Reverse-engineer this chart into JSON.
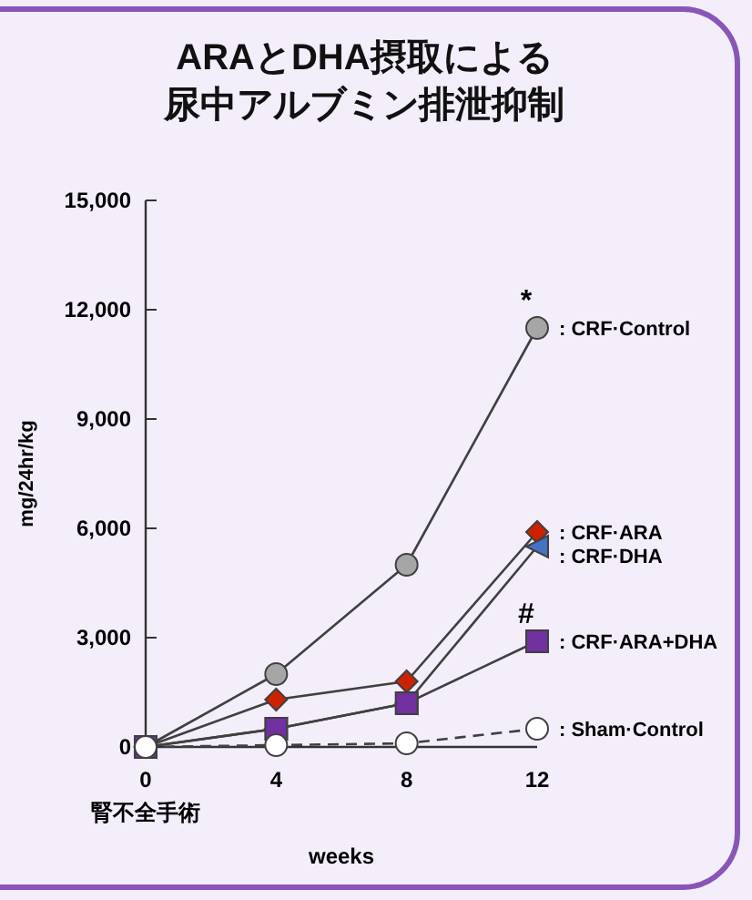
{
  "chart_data": {
    "type": "line",
    "title": "ARAとDHA摂取による尿中アルブミン排泄抑制",
    "xlabel": "weeks",
    "ylabel": "mg/24hr/kg",
    "x": [
      0,
      4,
      8,
      12
    ],
    "xlim": [
      0,
      12
    ],
    "xticks": [
      0,
      4,
      8,
      12
    ],
    "ylim": [
      0,
      15000
    ],
    "yticks": [
      0,
      {
        "value": 3000,
        "label": "3,000"
      },
      {
        "value": 6000,
        "label": "6,000"
      },
      {
        "value": 9000,
        "label": "9,000"
      },
      {
        "value": 12000,
        "label": "12,000"
      },
      {
        "value": 15000,
        "label": "15,000"
      }
    ],
    "grid": false,
    "series": [
      {
        "name": ": CRF·Control",
        "color": "#a6a6a6",
        "marker": "circle",
        "line_style": "solid",
        "values": [
          0,
          2000,
          5000,
          11500
        ]
      },
      {
        "name": ": CRF·ARA",
        "color": "#cc2200",
        "marker": "diamond",
        "line_style": "solid",
        "values": [
          0,
          1300,
          1800,
          5900
        ]
      },
      {
        "name": ": CRF·DHA",
        "color": "#4472c4",
        "marker": "triangle",
        "line_style": "solid",
        "values": [
          0,
          500,
          1200,
          5500
        ]
      },
      {
        "name": ": CRF·ARA+DHA",
        "color": "#7030a0",
        "marker": "square",
        "line_style": "solid",
        "values": [
          0,
          500,
          1200,
          2900
        ]
      },
      {
        "name": ": Sham·Control",
        "color": "#ffffff",
        "marker": "circle",
        "line_style": "dashed",
        "values": [
          0,
          50,
          100,
          500
        ]
      }
    ],
    "annotations": [
      {
        "text": "*",
        "x": 12,
        "y": 11500
      },
      {
        "text": "#",
        "x": 12,
        "y": 2900
      },
      "腎不全手術"
    ]
  }
}
